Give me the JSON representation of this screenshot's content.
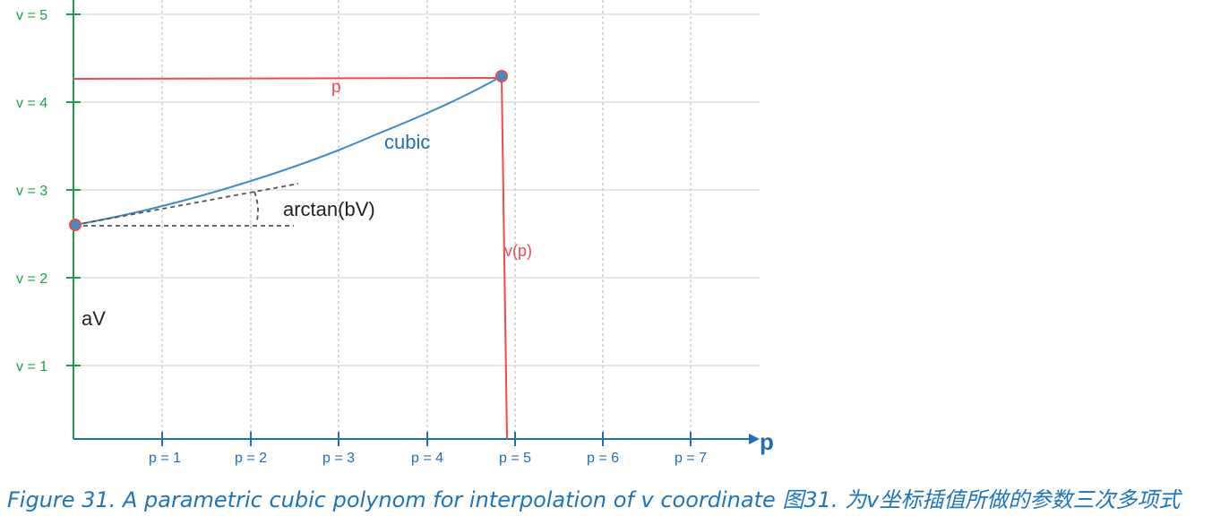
{
  "diagram": {
    "v_ticks": [
      "v = 5",
      "v = 4",
      "v = 3",
      "v = 2",
      "v = 1"
    ],
    "p_ticks": [
      "p = 1",
      "p = 2",
      "p = 3",
      "p = 4",
      "p = 5",
      "p = 6",
      "p = 7"
    ],
    "x_axis_label": "p",
    "labels": {
      "p": "p",
      "cubic": "cubic",
      "arctan": "arctan(bV)",
      "vp": "v(p)",
      "av": "aV"
    }
  },
  "caption": "Figure 31. A parametric cubic polynom for interpolation of v coordinate 图31. 为v坐标插值所做的参数三次多项式"
}
